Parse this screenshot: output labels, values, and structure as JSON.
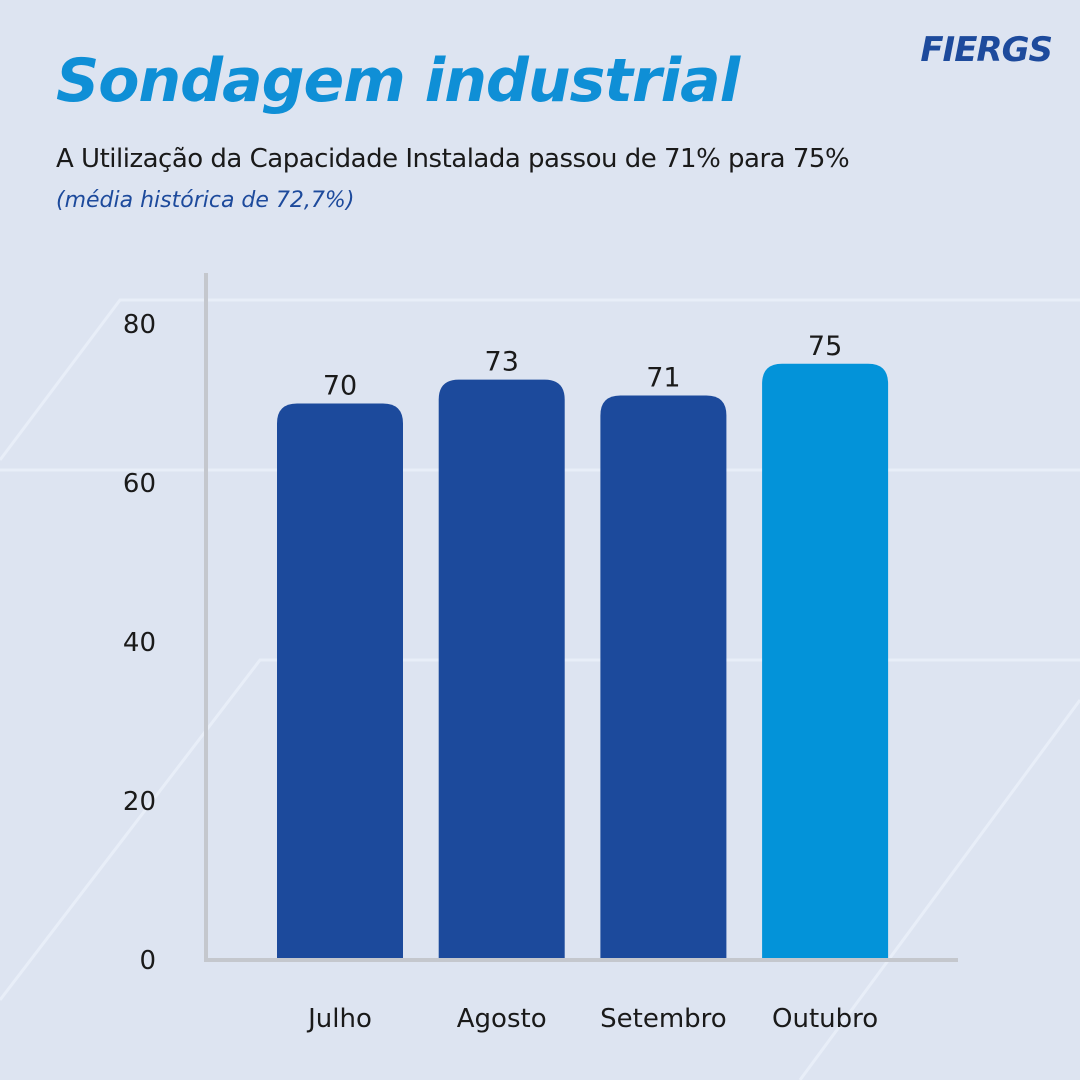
{
  "header": {
    "title": "Sondagem industrial",
    "logo_text": "FIERGS",
    "subtitle": "A Utilização da Capacidade Instalada passou de 71% para 75%",
    "note": "(média histórica de 72,7%)"
  },
  "colors": {
    "background": "#dde4f1",
    "title": "#0f8fd6",
    "bar_default": "#1c4a9c",
    "bar_highlight": "#0393d9",
    "axis": "#c4c7cd"
  },
  "chart_data": {
    "type": "bar",
    "categories": [
      "Julho",
      "Agosto",
      "Setembro",
      "Outubro"
    ],
    "values": [
      70,
      73,
      71,
      75
    ],
    "highlight_index": 3,
    "ylim": [
      0,
      86
    ],
    "yticks": [
      0,
      20,
      40,
      60,
      80
    ],
    "title": "",
    "xlabel": "",
    "ylabel": "",
    "grid": false,
    "legend": "none"
  }
}
